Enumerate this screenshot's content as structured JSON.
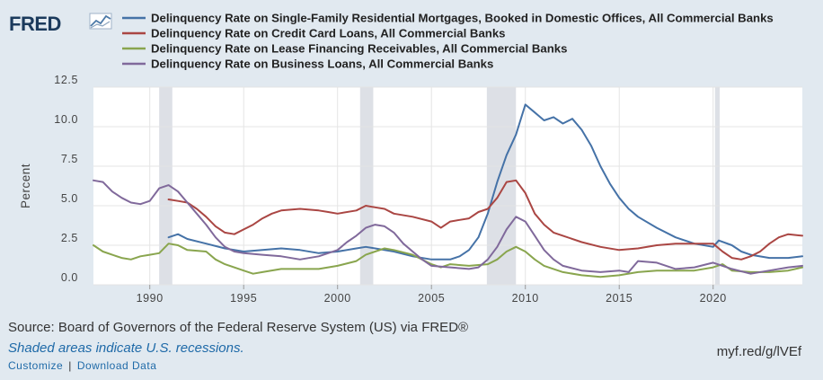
{
  "header": {
    "logo_text": "FRED"
  },
  "footer": {
    "source": "Source: Board of Governors of the Federal Reserve System (US) via FRED®",
    "shaded_note": "Shaded areas indicate U.S. recessions.",
    "customize_label": "Customize",
    "separator": "|",
    "download_label": "Download Data",
    "short_url": "myf.red/g/lVEf"
  },
  "chart_data": {
    "type": "line",
    "ylabel": "Percent",
    "ylim": [
      0,
      12.5
    ],
    "yticks": [
      0.0,
      2.5,
      5.0,
      7.5,
      10.0,
      12.5
    ],
    "ytick_labels": [
      "0.0",
      "2.5",
      "5.0",
      "7.5",
      "10.0",
      "12.5"
    ],
    "xlim": [
      1987.0,
      2024.75
    ],
    "xticks": [
      1990,
      1995,
      2000,
      2005,
      2010,
      2015,
      2020
    ],
    "xtick_labels": [
      "1990",
      "1995",
      "2000",
      "2005",
      "2010",
      "2015",
      "2020"
    ],
    "grid": true,
    "legend_position": "top",
    "recessions": [
      [
        1990.5,
        1991.2
      ],
      [
        2001.2,
        2001.9
      ],
      [
        2007.95,
        2009.5
      ],
      [
        2020.1,
        2020.35
      ]
    ],
    "series": [
      {
        "name": "Delinquency Rate on Single-Family Residential Mortgages, Booked in Domestic Offices, All Commercial Banks",
        "color": "#4572a7",
        "points": [
          [
            1991.0,
            3.0
          ],
          [
            1991.5,
            3.2
          ],
          [
            1992.0,
            2.9
          ],
          [
            1993.0,
            2.6
          ],
          [
            1994.0,
            2.3
          ],
          [
            1995.0,
            2.1
          ],
          [
            1996.0,
            2.2
          ],
          [
            1997.0,
            2.3
          ],
          [
            1998.0,
            2.2
          ],
          [
            1999.0,
            2.0
          ],
          [
            2000.0,
            2.1
          ],
          [
            2001.0,
            2.3
          ],
          [
            2001.5,
            2.4
          ],
          [
            2002.0,
            2.3
          ],
          [
            2003.0,
            2.1
          ],
          [
            2004.0,
            1.8
          ],
          [
            2005.0,
            1.6
          ],
          [
            2006.0,
            1.6
          ],
          [
            2006.5,
            1.8
          ],
          [
            2007.0,
            2.2
          ],
          [
            2007.5,
            3.0
          ],
          [
            2008.0,
            4.5
          ],
          [
            2008.5,
            6.5
          ],
          [
            2009.0,
            8.2
          ],
          [
            2009.5,
            9.5
          ],
          [
            2010.0,
            11.4
          ],
          [
            2010.5,
            10.9
          ],
          [
            2011.0,
            10.4
          ],
          [
            2011.5,
            10.6
          ],
          [
            2012.0,
            10.2
          ],
          [
            2012.5,
            10.5
          ],
          [
            2013.0,
            9.8
          ],
          [
            2013.5,
            8.8
          ],
          [
            2014.0,
            7.5
          ],
          [
            2014.5,
            6.4
          ],
          [
            2015.0,
            5.5
          ],
          [
            2015.5,
            4.8
          ],
          [
            2016.0,
            4.3
          ],
          [
            2017.0,
            3.6
          ],
          [
            2018.0,
            3.0
          ],
          [
            2019.0,
            2.6
          ],
          [
            2020.0,
            2.4
          ],
          [
            2020.3,
            2.8
          ],
          [
            2021.0,
            2.5
          ],
          [
            2021.5,
            2.1
          ],
          [
            2022.0,
            1.9
          ],
          [
            2023.0,
            1.7
          ],
          [
            2024.0,
            1.7
          ],
          [
            2024.75,
            1.8
          ]
        ]
      },
      {
        "name": "Delinquency Rate on Credit Card Loans, All Commercial Banks",
        "color": "#aa4643",
        "points": [
          [
            1991.0,
            5.4
          ],
          [
            1991.5,
            5.3
          ],
          [
            1992.0,
            5.2
          ],
          [
            1992.5,
            4.8
          ],
          [
            1993.0,
            4.3
          ],
          [
            1993.5,
            3.7
          ],
          [
            1994.0,
            3.3
          ],
          [
            1994.5,
            3.2
          ],
          [
            1995.0,
            3.5
          ],
          [
            1995.5,
            3.8
          ],
          [
            1996.0,
            4.2
          ],
          [
            1996.5,
            4.5
          ],
          [
            1997.0,
            4.7
          ],
          [
            1998.0,
            4.8
          ],
          [
            1999.0,
            4.7
          ],
          [
            1999.5,
            4.6
          ],
          [
            2000.0,
            4.5
          ],
          [
            2001.0,
            4.7
          ],
          [
            2001.5,
            5.0
          ],
          [
            2002.0,
            4.9
          ],
          [
            2002.5,
            4.8
          ],
          [
            2003.0,
            4.5
          ],
          [
            2004.0,
            4.3
          ],
          [
            2005.0,
            4.0
          ],
          [
            2005.5,
            3.6
          ],
          [
            2006.0,
            4.0
          ],
          [
            2006.5,
            4.1
          ],
          [
            2007.0,
            4.2
          ],
          [
            2007.5,
            4.6
          ],
          [
            2008.0,
            4.8
          ],
          [
            2008.5,
            5.5
          ],
          [
            2009.0,
            6.5
          ],
          [
            2009.5,
            6.6
          ],
          [
            2010.0,
            5.8
          ],
          [
            2010.5,
            4.5
          ],
          [
            2011.0,
            3.8
          ],
          [
            2011.5,
            3.3
          ],
          [
            2012.0,
            3.1
          ],
          [
            2013.0,
            2.7
          ],
          [
            2014.0,
            2.4
          ],
          [
            2015.0,
            2.2
          ],
          [
            2016.0,
            2.3
          ],
          [
            2017.0,
            2.5
          ],
          [
            2018.0,
            2.6
          ],
          [
            2019.0,
            2.6
          ],
          [
            2020.0,
            2.6
          ],
          [
            2020.5,
            2.1
          ],
          [
            2021.0,
            1.7
          ],
          [
            2021.5,
            1.6
          ],
          [
            2022.0,
            1.8
          ],
          [
            2022.5,
            2.1
          ],
          [
            2023.0,
            2.6
          ],
          [
            2023.5,
            3.0
          ],
          [
            2024.0,
            3.2
          ],
          [
            2024.75,
            3.1
          ]
        ]
      },
      {
        "name": "Delinquency Rate on Lease Financing Receivables, All Commercial Banks",
        "color": "#89a54e",
        "points": [
          [
            1987.0,
            2.5
          ],
          [
            1987.5,
            2.1
          ],
          [
            1988.0,
            1.9
          ],
          [
            1988.5,
            1.7
          ],
          [
            1989.0,
            1.6
          ],
          [
            1989.5,
            1.8
          ],
          [
            1990.0,
            1.9
          ],
          [
            1990.5,
            2.0
          ],
          [
            1991.0,
            2.6
          ],
          [
            1991.5,
            2.5
          ],
          [
            1992.0,
            2.2
          ],
          [
            1993.0,
            2.1
          ],
          [
            1993.5,
            1.6
          ],
          [
            1994.0,
            1.3
          ],
          [
            1995.0,
            0.9
          ],
          [
            1995.5,
            0.7
          ],
          [
            1996.0,
            0.8
          ],
          [
            1997.0,
            1.0
          ],
          [
            1998.0,
            1.0
          ],
          [
            1999.0,
            1.0
          ],
          [
            2000.0,
            1.2
          ],
          [
            2001.0,
            1.5
          ],
          [
            2001.5,
            1.9
          ],
          [
            2002.0,
            2.1
          ],
          [
            2002.5,
            2.3
          ],
          [
            2003.0,
            2.2
          ],
          [
            2004.0,
            1.9
          ],
          [
            2005.0,
            1.3
          ],
          [
            2005.5,
            1.1
          ],
          [
            2006.0,
            1.3
          ],
          [
            2007.0,
            1.2
          ],
          [
            2008.0,
            1.3
          ],
          [
            2008.5,
            1.6
          ],
          [
            2009.0,
            2.1
          ],
          [
            2009.5,
            2.4
          ],
          [
            2010.0,
            2.1
          ],
          [
            2010.5,
            1.6
          ],
          [
            2011.0,
            1.2
          ],
          [
            2012.0,
            0.8
          ],
          [
            2013.0,
            0.6
          ],
          [
            2014.0,
            0.5
          ],
          [
            2015.0,
            0.6
          ],
          [
            2016.0,
            0.8
          ],
          [
            2017.0,
            0.9
          ],
          [
            2018.0,
            0.9
          ],
          [
            2019.0,
            0.9
          ],
          [
            2020.0,
            1.1
          ],
          [
            2020.5,
            1.3
          ],
          [
            2021.0,
            0.9
          ],
          [
            2022.0,
            0.8
          ],
          [
            2023.0,
            0.8
          ],
          [
            2024.0,
            0.9
          ],
          [
            2024.75,
            1.1
          ]
        ]
      },
      {
        "name": "Delinquency Rate on Business Loans, All Commercial Banks",
        "color": "#80699b",
        "points": [
          [
            1987.0,
            6.6
          ],
          [
            1987.5,
            6.5
          ],
          [
            1988.0,
            5.9
          ],
          [
            1988.5,
            5.5
          ],
          [
            1989.0,
            5.2
          ],
          [
            1989.5,
            5.1
          ],
          [
            1990.0,
            5.3
          ],
          [
            1990.5,
            6.1
          ],
          [
            1991.0,
            6.3
          ],
          [
            1991.5,
            5.9
          ],
          [
            1992.0,
            5.2
          ],
          [
            1992.5,
            4.5
          ],
          [
            1993.0,
            3.8
          ],
          [
            1993.5,
            3.0
          ],
          [
            1994.0,
            2.4
          ],
          [
            1994.5,
            2.1
          ],
          [
            1995.0,
            2.0
          ],
          [
            1996.0,
            1.9
          ],
          [
            1997.0,
            1.8
          ],
          [
            1998.0,
            1.6
          ],
          [
            1999.0,
            1.8
          ],
          [
            2000.0,
            2.2
          ],
          [
            2000.5,
            2.7
          ],
          [
            2001.0,
            3.1
          ],
          [
            2001.5,
            3.6
          ],
          [
            2002.0,
            3.8
          ],
          [
            2002.5,
            3.7
          ],
          [
            2003.0,
            3.3
          ],
          [
            2003.5,
            2.6
          ],
          [
            2004.0,
            2.1
          ],
          [
            2004.5,
            1.6
          ],
          [
            2005.0,
            1.2
          ],
          [
            2006.0,
            1.1
          ],
          [
            2007.0,
            1.0
          ],
          [
            2007.5,
            1.1
          ],
          [
            2008.0,
            1.6
          ],
          [
            2008.5,
            2.4
          ],
          [
            2009.0,
            3.5
          ],
          [
            2009.5,
            4.3
          ],
          [
            2010.0,
            4.0
          ],
          [
            2010.5,
            3.1
          ],
          [
            2011.0,
            2.2
          ],
          [
            2011.5,
            1.6
          ],
          [
            2012.0,
            1.2
          ],
          [
            2013.0,
            0.9
          ],
          [
            2014.0,
            0.8
          ],
          [
            2015.0,
            0.9
          ],
          [
            2015.5,
            0.8
          ],
          [
            2016.0,
            1.5
          ],
          [
            2017.0,
            1.4
          ],
          [
            2018.0,
            1.0
          ],
          [
            2019.0,
            1.1
          ],
          [
            2020.0,
            1.4
          ],
          [
            2020.5,
            1.2
          ],
          [
            2021.0,
            1.0
          ],
          [
            2022.0,
            0.7
          ],
          [
            2023.0,
            0.9
          ],
          [
            2024.0,
            1.1
          ],
          [
            2024.75,
            1.2
          ]
        ]
      }
    ]
  }
}
